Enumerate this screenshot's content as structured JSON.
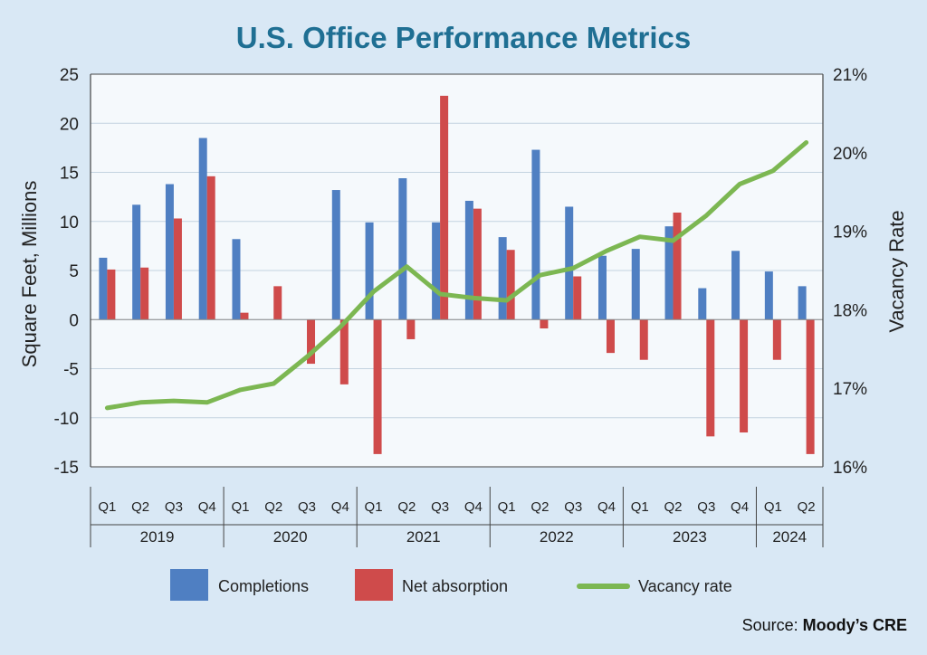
{
  "chart_data": {
    "type": "bar",
    "title": "U.S. Office Performance Metrics",
    "ylabel": "Square Feet, Millions",
    "y2label": "Vacancy Rate",
    "ylim": [
      -15,
      25
    ],
    "y2lim": [
      16,
      21
    ],
    "yticks": [
      "25",
      "20",
      "15",
      "10",
      "5",
      "0",
      "-5",
      "-10",
      "-15"
    ],
    "y2ticks": [
      "21%",
      "20%",
      "19%",
      "18%",
      "17%",
      "16%"
    ],
    "quarters": [
      "Q1",
      "Q2",
      "Q3",
      "Q4",
      "Q1",
      "Q2",
      "Q3",
      "Q4",
      "Q1",
      "Q2",
      "Q3",
      "Q4",
      "Q1",
      "Q2",
      "Q3",
      "Q4",
      "Q1",
      "Q2",
      "Q3",
      "Q4",
      "Q1",
      "Q2"
    ],
    "years": [
      {
        "label": "2019",
        "count": 4
      },
      {
        "label": "2020",
        "count": 4
      },
      {
        "label": "2021",
        "count": 4
      },
      {
        "label": "2022",
        "count": 4
      },
      {
        "label": "2023",
        "count": 4
      },
      {
        "label": "2024",
        "count": 2
      }
    ],
    "series": [
      {
        "name": "Completions",
        "kind": "bar",
        "color": "#4f7fc2",
        "values": [
          6.3,
          11.7,
          13.8,
          18.5,
          8.2,
          0,
          0,
          13.2,
          9.9,
          14.4,
          9.9,
          12.1,
          8.4,
          17.3,
          11.5,
          6.5,
          7.2,
          9.5,
          3.2,
          7.0,
          4.9,
          3.4
        ]
      },
      {
        "name": "Net absorption",
        "kind": "bar",
        "color": "#cf4b4b",
        "values": [
          5.1,
          5.3,
          10.3,
          14.6,
          0.7,
          3.4,
          -4.5,
          -6.6,
          -13.7,
          -2.0,
          22.8,
          11.3,
          7.1,
          -0.9,
          4.4,
          -3.4,
          -4.1,
          10.9,
          -11.9,
          -11.5,
          -4.1,
          -13.7
        ]
      },
      {
        "name": "Vacancy rate",
        "kind": "line",
        "color": "#7cb752",
        "values": [
          16.75,
          16.82,
          16.84,
          16.82,
          16.98,
          17.06,
          17.4,
          17.78,
          18.23,
          18.55,
          18.2,
          18.15,
          18.12,
          18.44,
          18.53,
          18.75,
          18.93,
          18.88,
          19.2,
          19.6,
          19.77,
          20.13
        ]
      }
    ],
    "legend": "bottom",
    "grid": true,
    "source_prefix": "Source: ",
    "source_name": "Moody’s CRE"
  }
}
